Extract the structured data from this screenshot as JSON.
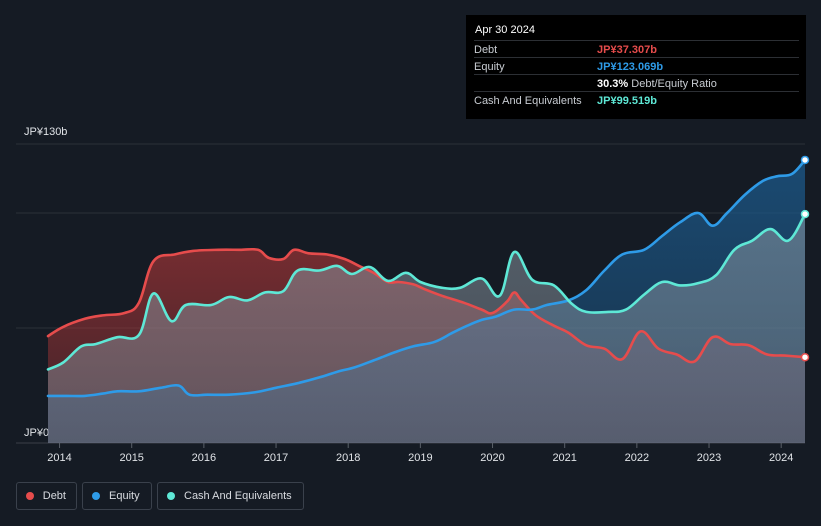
{
  "tooltip": {
    "date": "Apr 30 2024",
    "rows": [
      {
        "label": "Debt",
        "value": "JP¥37.307b",
        "color": "#e64c4c"
      },
      {
        "label": "Equity",
        "value": "JP¥123.069b",
        "color": "#2e9be8"
      },
      {
        "label": "",
        "value": "30.3%",
        "suffix": "Debt/Equity Ratio",
        "color": "#ffffff"
      },
      {
        "label": "Cash And Equivalents",
        "value": "JP¥99.519b",
        "color": "#5ee8d6"
      }
    ]
  },
  "legend": {
    "items": [
      {
        "label": "Debt",
        "color": "#e64c4c"
      },
      {
        "label": "Equity",
        "color": "#2e9be8"
      },
      {
        "label": "Cash And Equivalents",
        "color": "#5ee8d6"
      }
    ]
  },
  "chart_data": {
    "type": "area",
    "title": "",
    "xlabel": "",
    "ylabel": "",
    "y_tick_labels": [
      "JP¥0",
      "JP¥130b"
    ],
    "ylim": [
      0,
      130
    ],
    "xlim": [
      2013.84,
      2024.33
    ],
    "x_ticks": [
      2014,
      2015,
      2016,
      2017,
      2018,
      2019,
      2020,
      2021,
      2022,
      2023,
      2024
    ],
    "x_tick_labels": [
      "2014",
      "2015",
      "2016",
      "2017",
      "2018",
      "2019",
      "2020",
      "2021",
      "2022",
      "2023",
      "2024"
    ],
    "series": [
      {
        "name": "Debt",
        "color": "#e64c4c",
        "x": [
          2013.84,
          2014.05,
          2014.35,
          2014.6,
          2014.9,
          2015.1,
          2015.3,
          2015.6,
          2015.85,
          2016.2,
          2016.5,
          2016.75,
          2016.9,
          2017.1,
          2017.25,
          2017.45,
          2017.7,
          2017.95,
          2018.15,
          2018.35,
          2018.55,
          2018.7,
          2018.9,
          2019.05,
          2019.3,
          2019.6,
          2019.85,
          2020.0,
          2020.2,
          2020.3,
          2020.4,
          2020.6,
          2020.85,
          2021.05,
          2021.3,
          2021.55,
          2021.8,
          2022.05,
          2022.3,
          2022.55,
          2022.8,
          2023.05,
          2023.3,
          2023.55,
          2023.8,
          2024.05,
          2024.33
        ],
        "values": [
          46.5,
          50.5,
          54.0,
          55.5,
          56.5,
          61.0,
          79.0,
          82.0,
          83.5,
          84.0,
          84.0,
          84.0,
          80.5,
          80.0,
          84.0,
          82.5,
          82.0,
          80.0,
          77.0,
          74.0,
          70.0,
          70.0,
          69.0,
          67.0,
          64.0,
          61.0,
          58.0,
          56.5,
          61.5,
          65.5,
          62.0,
          55.5,
          51.0,
          48.0,
          42.5,
          41.0,
          36.5,
          48.5,
          41.0,
          38.5,
          35.5,
          46.0,
          43.0,
          42.5,
          38.5,
          38.0,
          37.307
        ]
      },
      {
        "name": "Equity",
        "color": "#2e9be8",
        "x": [
          2013.84,
          2014.1,
          2014.35,
          2014.6,
          2014.8,
          2015.1,
          2015.4,
          2015.65,
          2015.8,
          2016.05,
          2016.35,
          2016.7,
          2017.0,
          2017.3,
          2017.6,
          2017.85,
          2018.1,
          2018.4,
          2018.65,
          2018.9,
          2019.2,
          2019.45,
          2019.65,
          2019.85,
          2020.05,
          2020.3,
          2020.55,
          2020.75,
          2021.05,
          2021.3,
          2021.55,
          2021.8,
          2022.1,
          2022.35,
          2022.6,
          2022.85,
          2023.05,
          2023.25,
          2023.5,
          2023.75,
          2023.95,
          2024.15,
          2024.33
        ],
        "values": [
          20.5,
          20.5,
          20.5,
          21.5,
          22.5,
          22.5,
          24.0,
          25.0,
          21.0,
          21.0,
          21.0,
          22.0,
          24.0,
          26.0,
          28.5,
          31.0,
          33.0,
          36.5,
          39.5,
          42.0,
          44.0,
          48.0,
          51.0,
          53.5,
          55.0,
          58.0,
          58.0,
          60.0,
          62.0,
          66.5,
          75.0,
          82.0,
          84.0,
          90.0,
          96.0,
          100.0,
          94.5,
          100.0,
          108.0,
          114.0,
          116.0,
          117.0,
          123.069
        ]
      },
      {
        "name": "Cash And Equivalents",
        "color": "#5ee8d6",
        "x": [
          2013.84,
          2014.05,
          2014.3,
          2014.5,
          2014.8,
          2015.1,
          2015.3,
          2015.55,
          2015.75,
          2016.1,
          2016.35,
          2016.6,
          2016.85,
          2017.1,
          2017.3,
          2017.6,
          2017.85,
          2018.05,
          2018.3,
          2018.55,
          2018.8,
          2019.0,
          2019.3,
          2019.55,
          2019.85,
          2020.1,
          2020.3,
          2020.55,
          2020.85,
          2021.1,
          2021.3,
          2021.6,
          2021.85,
          2022.1,
          2022.35,
          2022.6,
          2022.85,
          2023.1,
          2023.35,
          2023.6,
          2023.85,
          2024.1,
          2024.33
        ],
        "values": [
          32.0,
          35.0,
          42.0,
          43.0,
          46.0,
          47.0,
          65.0,
          53.0,
          60.0,
          60.0,
          63.5,
          62.0,
          65.5,
          66.0,
          75.0,
          75.0,
          77.0,
          73.5,
          76.5,
          70.5,
          74.0,
          70.0,
          67.5,
          67.5,
          71.5,
          64.0,
          83.0,
          71.0,
          68.5,
          60.5,
          57.0,
          57.0,
          58.0,
          64.5,
          70.0,
          68.5,
          69.5,
          73.0,
          84.0,
          88.0,
          93.0,
          88.0,
          99.519
        ]
      }
    ]
  }
}
